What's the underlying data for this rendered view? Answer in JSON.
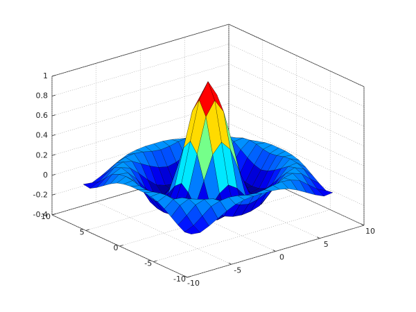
{
  "chart_data": {
    "type": "surface",
    "colormap": "jet",
    "grid": true,
    "x": [
      -8,
      -7,
      -6,
      -5,
      -4,
      -3,
      -2,
      -1,
      0,
      1,
      2,
      3,
      4,
      5,
      6,
      7,
      8
    ],
    "y": [
      -8,
      -7,
      -6,
      -5,
      -4,
      -3,
      -2,
      -1,
      0,
      1,
      2,
      3,
      4,
      5,
      6,
      7,
      8
    ],
    "z": [
      [
        -0.08,
        -0.09,
        -0.05,
        0,
        0.05,
        0.09,
        0.11,
        0.12,
        0.12,
        0.12,
        0.11,
        0.09,
        0.05,
        0,
        -0.05,
        -0.09,
        -0.08
      ],
      [
        -0.09,
        -0.05,
        0.02,
        0.09,
        0.12,
        0.13,
        0.12,
        0.1,
        0.09,
        0.1,
        0.12,
        0.13,
        0.12,
        0.09,
        0.02,
        -0.05,
        -0.09
      ],
      [
        -0.05,
        0.02,
        0.1,
        0.13,
        0.11,
        0.06,
        0.01,
        -0.03,
        -0.05,
        -0.03,
        0.01,
        0.06,
        0.11,
        0.13,
        0.1,
        0.02,
        -0.05
      ],
      [
        0,
        0.09,
        0.13,
        0.1,
        0.02,
        -0.07,
        -0.15,
        -0.18,
        -0.19,
        -0.18,
        -0.15,
        -0.07,
        0.02,
        0.1,
        0.13,
        0.09,
        0
      ],
      [
        0.05,
        0.12,
        0.11,
        0.02,
        -0.1,
        -0.19,
        -0.22,
        -0.2,
        -0.19,
        -0.2,
        -0.22,
        -0.19,
        -0.1,
        0.02,
        0.11,
        0.12,
        0.05
      ],
      [
        0.09,
        0.13,
        0.06,
        -0.07,
        -0.19,
        -0.21,
        -0.12,
        -0.01,
        0.05,
        -0.01,
        -0.12,
        -0.21,
        -0.19,
        -0.07,
        0.06,
        0.13,
        0.09
      ],
      [
        0.11,
        0.12,
        0.01,
        -0.15,
        -0.22,
        -0.12,
        0.11,
        0.35,
        0.45,
        0.35,
        0.11,
        -0.12,
        -0.22,
        -0.15,
        0.01,
        0.12,
        0.11
      ],
      [
        0.12,
        0.1,
        -0.03,
        -0.18,
        -0.2,
        -0.01,
        0.35,
        0.7,
        0.84,
        0.7,
        0.35,
        -0.01,
        -0.2,
        -0.18,
        -0.03,
        0.1,
        0.12
      ],
      [
        0.12,
        0.09,
        -0.05,
        -0.19,
        -0.19,
        0.05,
        0.45,
        0.84,
        1,
        0.84,
        0.45,
        0.05,
        -0.19,
        -0.19,
        -0.05,
        0.09,
        0.12
      ],
      [
        0.12,
        0.1,
        -0.03,
        -0.18,
        -0.2,
        -0.01,
        0.35,
        0.7,
        0.84,
        0.7,
        0.35,
        -0.01,
        -0.2,
        -0.18,
        -0.03,
        0.1,
        0.12
      ],
      [
        0.11,
        0.12,
        0.01,
        -0.15,
        -0.22,
        -0.12,
        0.11,
        0.35,
        0.45,
        0.35,
        0.11,
        -0.12,
        -0.22,
        -0.15,
        0.01,
        0.12,
        0.11
      ],
      [
        0.09,
        0.13,
        0.06,
        -0.07,
        -0.19,
        -0.21,
        -0.12,
        -0.01,
        0.05,
        -0.01,
        -0.12,
        -0.21,
        -0.19,
        -0.07,
        0.06,
        0.13,
        0.09
      ],
      [
        0.05,
        0.12,
        0.11,
        0.02,
        -0.1,
        -0.19,
        -0.22,
        -0.2,
        -0.19,
        -0.2,
        -0.22,
        -0.19,
        -0.1,
        0.02,
        0.11,
        0.12,
        0.05
      ],
      [
        0,
        0.09,
        0.13,
        0.1,
        0.02,
        -0.07,
        -0.15,
        -0.18,
        -0.19,
        -0.18,
        -0.15,
        -0.07,
        0.02,
        0.1,
        0.13,
        0.09,
        0
      ],
      [
        -0.05,
        0.02,
        0.1,
        0.13,
        0.11,
        0.06,
        0.01,
        -0.03,
        -0.05,
        -0.03,
        0.01,
        0.06,
        0.11,
        0.13,
        0.1,
        0.02,
        -0.05
      ],
      [
        -0.09,
        -0.05,
        0.02,
        0.09,
        0.12,
        0.13,
        0.12,
        0.1,
        0.09,
        0.1,
        0.12,
        0.13,
        0.12,
        0.09,
        0.02,
        -0.05,
        -0.09
      ],
      [
        -0.08,
        -0.09,
        -0.05,
        0,
        0.05,
        0.09,
        0.11,
        0.12,
        0.12,
        0.12,
        0.11,
        0.09,
        0.05,
        0,
        -0.05,
        -0.09,
        -0.08
      ]
    ],
    "xlim": [
      -10,
      10
    ],
    "ylim": [
      -10,
      10
    ],
    "zlim": [
      -0.4,
      1
    ],
    "xticks": [
      -10,
      -5,
      0,
      5,
      10
    ],
    "yticks": [
      -10,
      -5,
      0,
      5,
      10
    ],
    "zticks": [
      -0.4,
      -0.2,
      0,
      0.2,
      0.4,
      0.6,
      0.8,
      1
    ]
  }
}
